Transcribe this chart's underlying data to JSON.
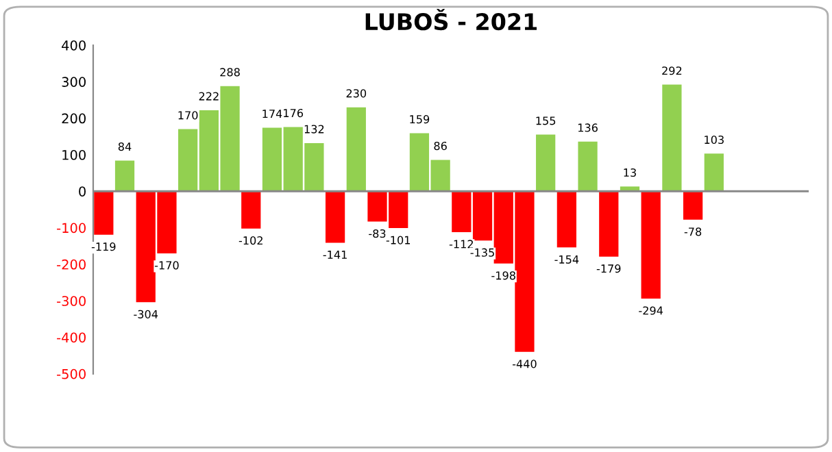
{
  "chart_data": {
    "type": "bar",
    "title": "LUBOŠ - 2021",
    "categories": [
      null,
      null,
      null,
      null,
      null,
      null,
      null,
      null,
      null,
      null,
      null,
      null,
      null,
      null,
      null,
      null,
      null,
      null,
      null,
      null,
      null,
      null,
      null,
      null,
      null,
      null,
      null,
      null,
      null,
      null,
      null,
      null,
      null,
      null
    ],
    "values": [
      -119,
      84,
      -304,
      -170,
      170,
      222,
      288,
      -102,
      174,
      176,
      132,
      -141,
      230,
      -83,
      -101,
      159,
      86,
      -112,
      -135,
      -198,
      -440,
      155,
      -154,
      136,
      -179,
      13,
      -294,
      292,
      -78,
      103,
      null,
      null,
      null,
      null
    ],
    "colors": [
      "#ff0000",
      "#92d050",
      "#ff0000",
      "#ff0000",
      "#92d050",
      "#92d050",
      "#92d050",
      "#ff0000",
      "#92d050",
      "#92d050",
      "#92d050",
      "#ff0000",
      "#92d050",
      "#ff0000",
      "#ff0000",
      "#92d050",
      "#92d050",
      "#ff0000",
      "#ff0000",
      "#ff0000",
      "#ff0000",
      "#92d050",
      "#ff0000",
      "#92d050",
      "#ff0000",
      "#92d050",
      "#ff0000",
      "#92d050",
      "#ff0000",
      "#92d050",
      "#92d050",
      "#92d050",
      "#92d050",
      "#92d050"
    ],
    "ylim": [
      -500,
      400
    ],
    "yticks": [
      -500,
      -400,
      -300,
      -200,
      -100,
      0,
      100,
      200,
      300,
      400
    ],
    "data_labels": true
  }
}
